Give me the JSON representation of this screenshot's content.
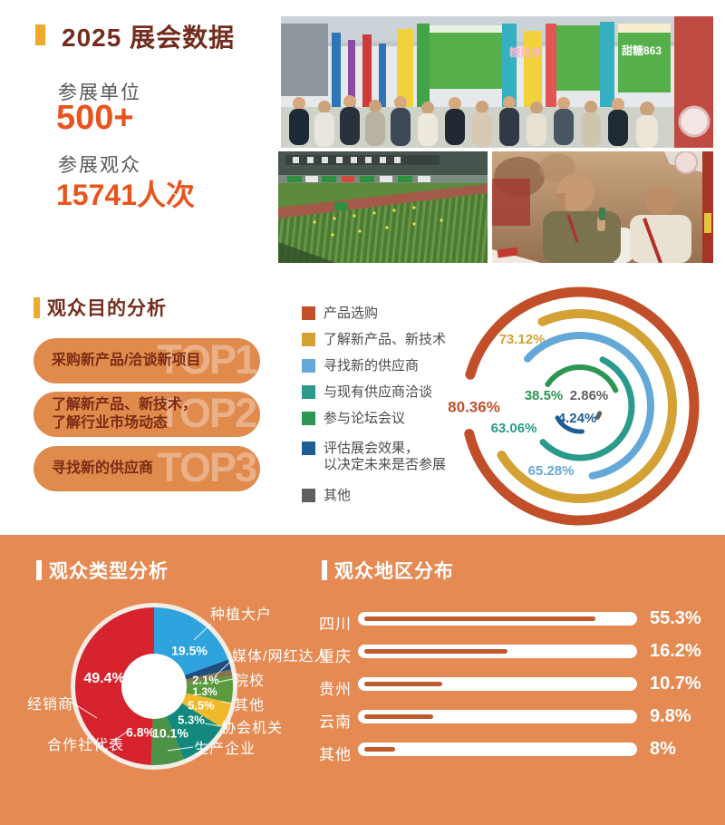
{
  "colors": {
    "accent_yellow": "#efa92c",
    "title_brown": "#722d1e",
    "number_orange": "#e8541e",
    "pill_bg": "#e08a4c",
    "pill_text": "#7c2c16",
    "section_orange": "#e58a52",
    "bar_fill": "#bf5a2b",
    "white": "#ffffff"
  },
  "top": {
    "title": "2025 展会数据",
    "stats": [
      {
        "label": "参展单位",
        "value": "500+"
      },
      {
        "label": "参展观众",
        "value": "15741人次"
      }
    ]
  },
  "photos": {
    "banner_1": "糖拉多",
    "banner_2": "甜糖863"
  },
  "purpose": {
    "title": "观众目的分析",
    "top_items": [
      {
        "rank": "TOP1",
        "label": "采购新产品/洽谈新项目"
      },
      {
        "rank": "TOP2",
        "label": "了解新产品、新技术，\n了解行业市场动态"
      },
      {
        "rank": "TOP3",
        "label": "寻找新的供应商"
      }
    ]
  },
  "type_section": {
    "title": "观众类型分析"
  },
  "region_section": {
    "title": "观众地区分布"
  },
  "chart_data": [
    {
      "type": "radial-bars",
      "title": "观众目的分析",
      "legend_position": "left",
      "series": [
        {
          "label": "产品选购",
          "value": 80.36,
          "display": "80.36%",
          "color": "#c1502a"
        },
        {
          "label": "了解新产品、新技术",
          "value": 73.12,
          "display": "73.12%",
          "color": "#d4a234"
        },
        {
          "label": "寻找新的供应商",
          "value": 65.28,
          "display": "65.28%",
          "color": "#64a8d8"
        },
        {
          "label": "与现有供应商洽谈",
          "value": 63.06,
          "display": "63.06%",
          "color": "#2a9a8c"
        },
        {
          "label": "参与论坛会议",
          "value": 38.5,
          "display": "38.5%",
          "color": "#2e9653"
        },
        {
          "label": "评估展会效果，\n以决定未来是否参展",
          "value": 4.24,
          "display": "4.24%",
          "color": "#1d5d94"
        },
        {
          "label": "其他",
          "value": 2.86,
          "display": "2.86%",
          "color": "#5f5f5f"
        }
      ]
    },
    {
      "type": "pie",
      "title": "观众类型分析",
      "donut": true,
      "start_angle": "top",
      "direction": "clockwise",
      "slices": [
        {
          "label": "种植大户",
          "value": 19.5,
          "display": "19.5%",
          "color": "#2fa3dd"
        },
        {
          "label": "媒体/网红达人",
          "value": 2.1,
          "display": "2.1%",
          "color": "#1f4d7d"
        },
        {
          "label": "院校",
          "value": 1.3,
          "display": "1.3%",
          "color": "#84744d"
        },
        {
          "label": "其他",
          "value": 5.5,
          "display": "5.5%",
          "color": "#5c9a3e"
        },
        {
          "label": "协会机关",
          "value": 5.3,
          "display": "5.3%",
          "color": "#f0b92b"
        },
        {
          "label": "生产企业",
          "value": 10.1,
          "display": "10.1%",
          "color": "#12897c"
        },
        {
          "label": "合作社代表",
          "value": 6.8,
          "display": "6.8%",
          "color": "#4c9347"
        },
        {
          "label": "经销商",
          "value": 49.4,
          "display": "49.4%",
          "color": "#d6232e"
        }
      ]
    },
    {
      "type": "bar",
      "title": "观众地区分布",
      "orientation": "horizontal",
      "categories": [
        "四川",
        "重庆",
        "贵州",
        "云南",
        "其他"
      ],
      "values": [
        55.3,
        16.2,
        10.7,
        9.8,
        8
      ],
      "displays": [
        "55.3%",
        "16.2%",
        "10.7%",
        "9.8%",
        "8%"
      ]
    }
  ]
}
